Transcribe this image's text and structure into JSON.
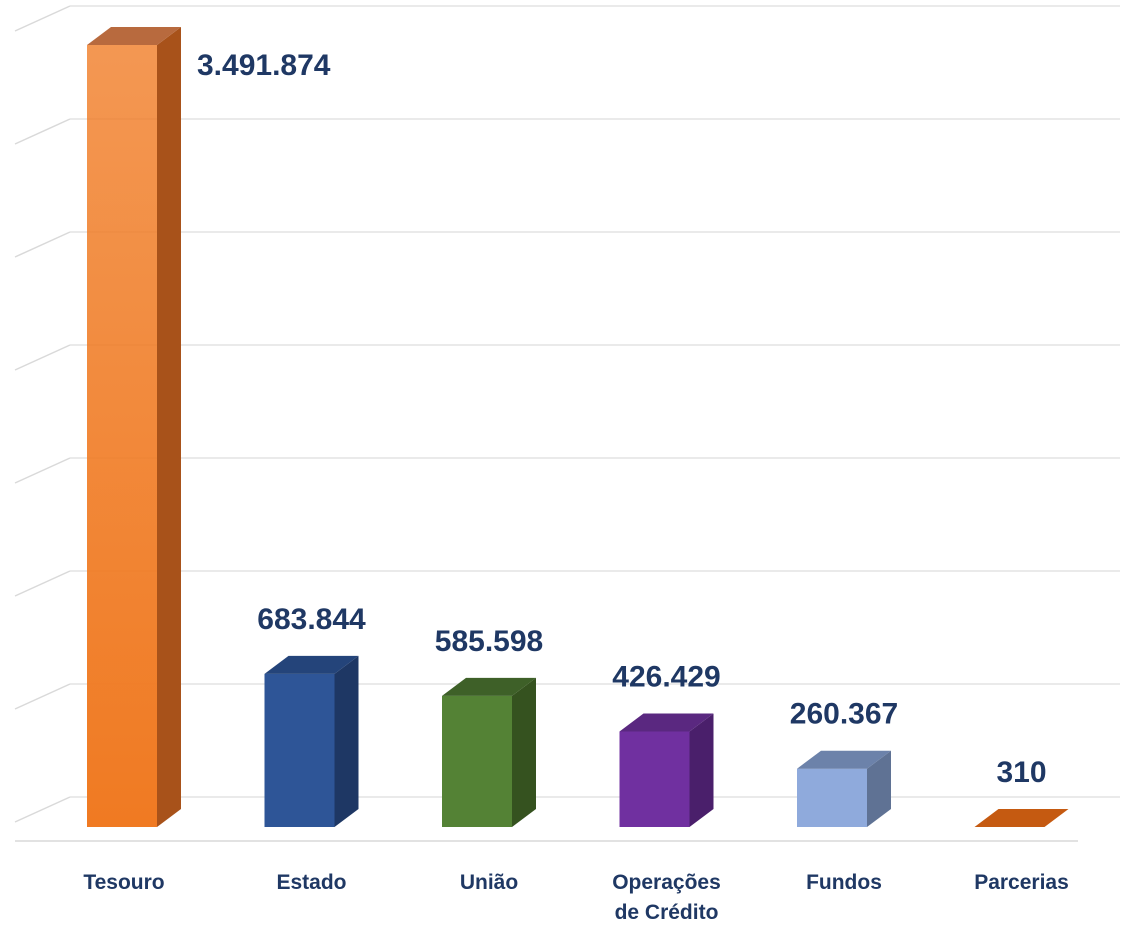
{
  "chart_data": {
    "type": "bar",
    "style": "3d-column",
    "title": "",
    "xlabel": "",
    "ylabel": "",
    "ylim": [
      0,
      3500000
    ],
    "grid": true,
    "categories": [
      [
        "Tesouro"
      ],
      [
        "Estado"
      ],
      [
        "União"
      ],
      [
        "Operações",
        "de Crédito"
      ],
      [
        "Fundos"
      ],
      [
        "Parcerias"
      ]
    ],
    "values": [
      3491874,
      683844,
      585598,
      426429,
      260367,
      310
    ],
    "value_labels": [
      "3.491.874",
      "683.844",
      "585.598",
      "426.429",
      "260.367",
      "310"
    ],
    "colors": [
      {
        "front": "#f07a22",
        "side": "#a8521a",
        "top": "#b86a3e"
      },
      {
        "front": "#2e5597",
        "side": "#1e3764",
        "top": "#24447a"
      },
      {
        "front": "#548235",
        "side": "#35521f",
        "top": "#3e6028"
      },
      {
        "front": "#7030a0",
        "side": "#4a1f6b",
        "top": "#5a2880"
      },
      {
        "front": "#8faadc",
        "side": "#5f7294",
        "top": "#6c82aa"
      },
      {
        "front": "#c55a11",
        "side": "#8a3f0c",
        "top": "#c55a11"
      }
    ]
  }
}
